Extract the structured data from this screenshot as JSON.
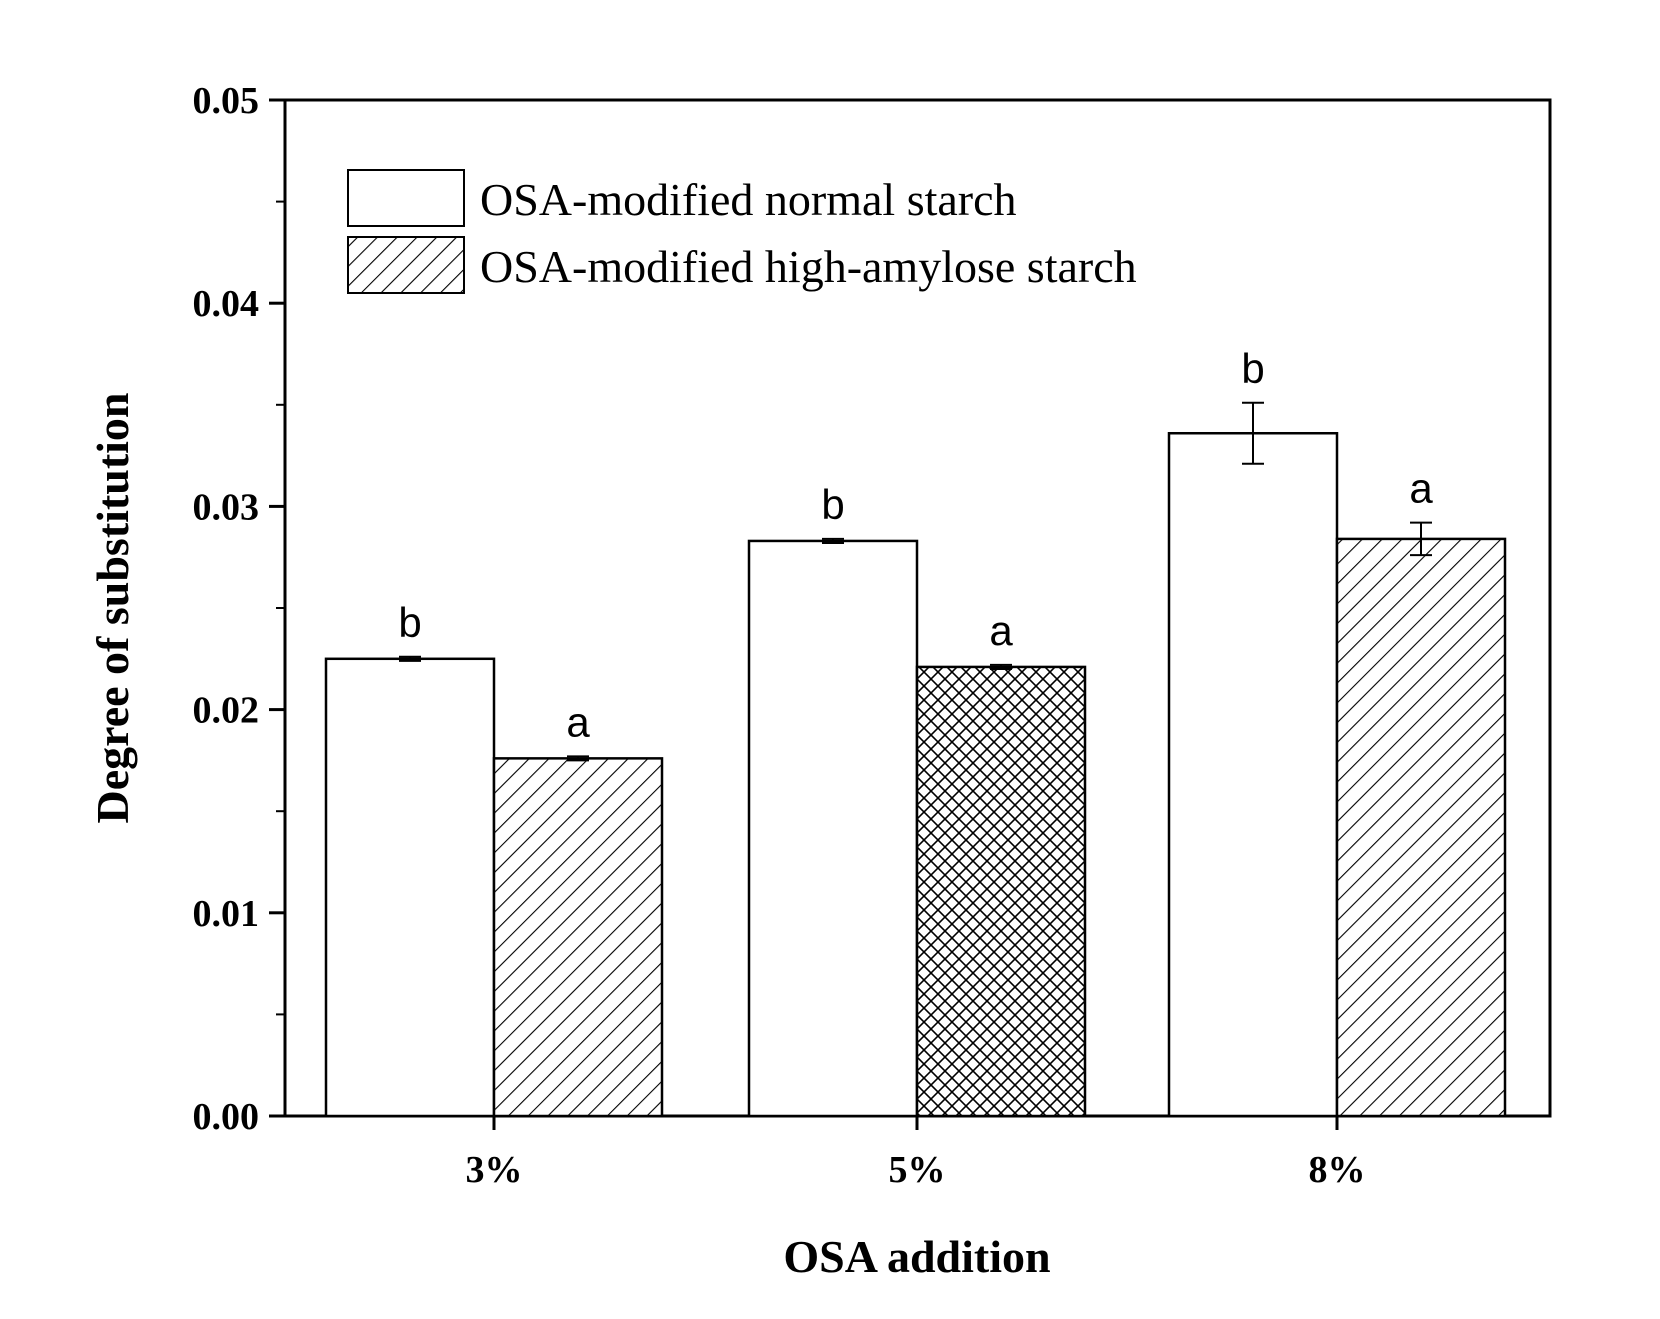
{
  "chart_data": {
    "type": "bar",
    "title": "",
    "xlabel": "OSA addition",
    "ylabel": "Degree of substitution",
    "categories": [
      "3%",
      "5%",
      "8%"
    ],
    "ylim": [
      0,
      0.05
    ],
    "yticks": [
      "0.00",
      "0.01",
      "0.02",
      "0.03",
      "0.04",
      "0.05"
    ],
    "ytick_values": [
      0,
      0.01,
      0.02,
      0.03,
      0.04,
      0.05
    ],
    "legend_position": "top-left",
    "grid": false,
    "series": [
      {
        "name": "OSA-modified normal starch",
        "values": [
          0.0225,
          0.0283,
          0.0336
        ],
        "errors": [
          0.0001,
          0.0001,
          0.0015
        ],
        "labels": [
          "b",
          "b",
          "b"
        ],
        "fill": "white"
      },
      {
        "name": "OSA-modified high-amylose starch",
        "values": [
          0.0176,
          0.0221,
          0.0284
        ],
        "errors": [
          0.0001,
          0.0001,
          0.0008
        ],
        "labels": [
          "a",
          "a",
          "a"
        ],
        "fill": "hatched"
      }
    ]
  }
}
